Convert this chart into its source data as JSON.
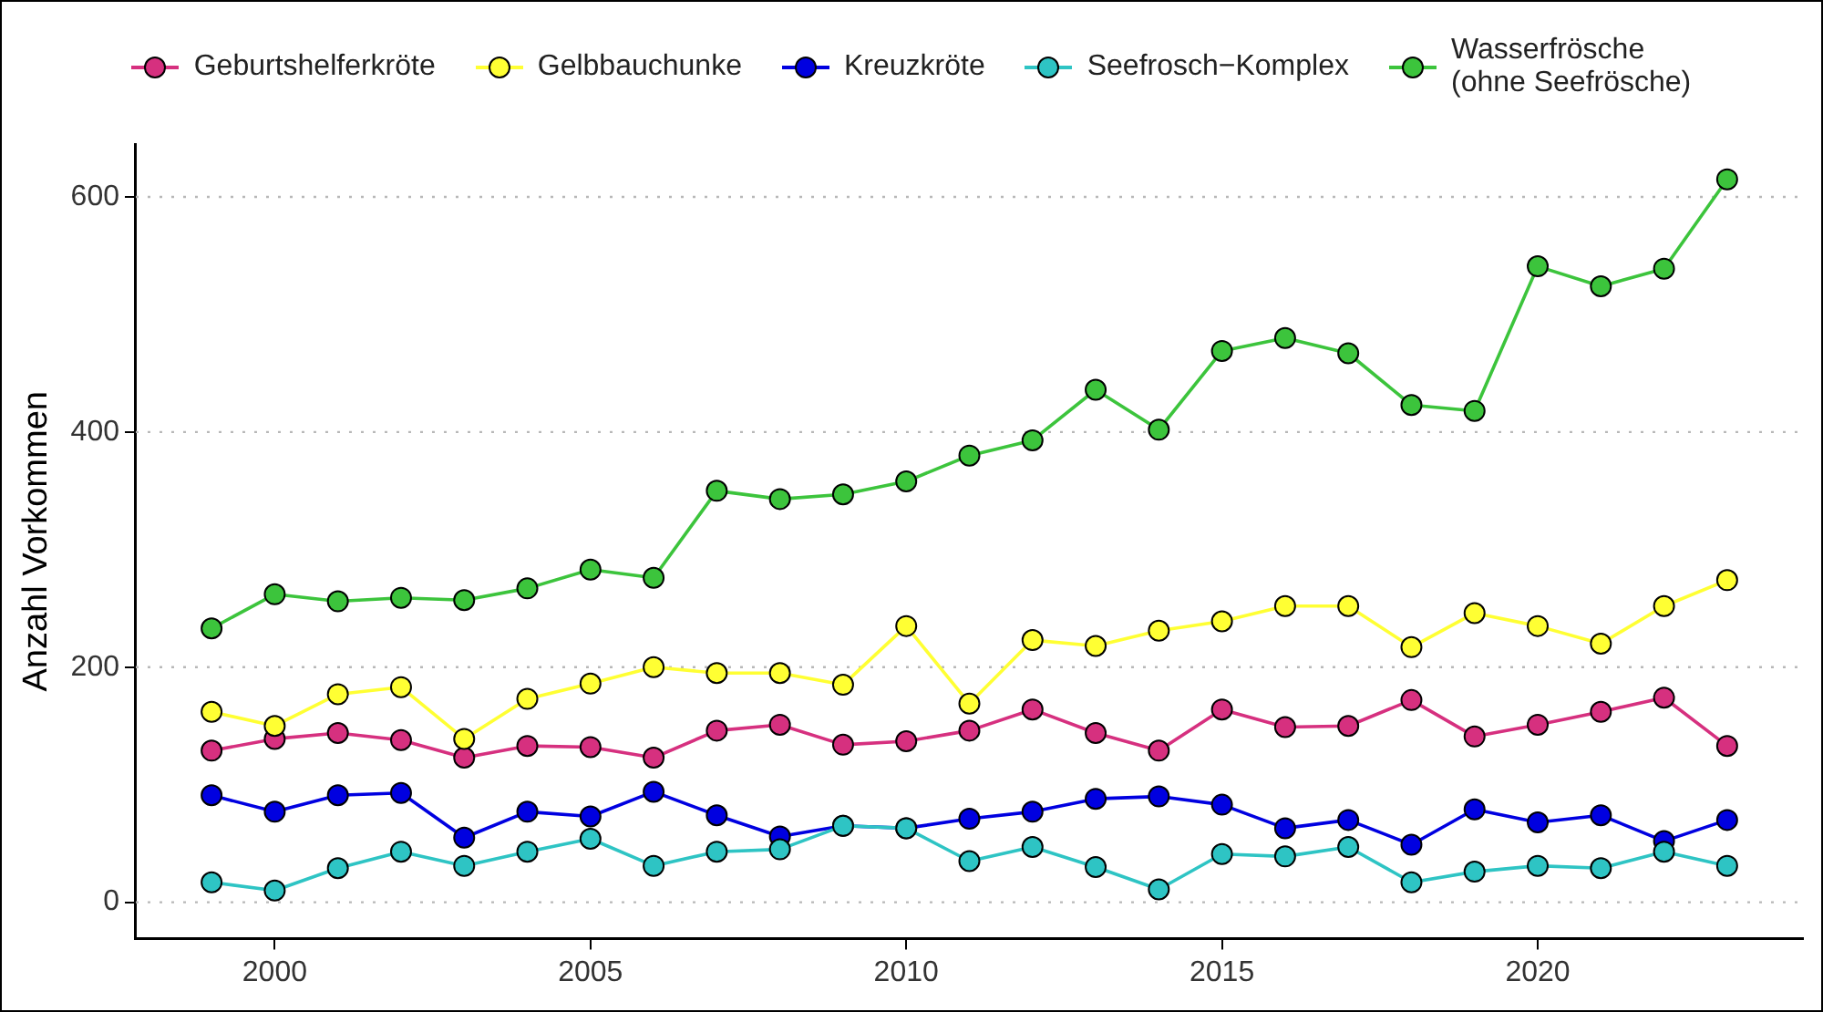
{
  "chart_data": {
    "type": "line",
    "ylabel": "Anzahl Vorkommen",
    "x": [
      1999,
      2000,
      2001,
      2002,
      2003,
      2004,
      2005,
      2006,
      2007,
      2008,
      2009,
      2010,
      2011,
      2012,
      2013,
      2014,
      2015,
      2016,
      2017,
      2018,
      2019,
      2020,
      2021,
      2022,
      2023
    ],
    "series": [
      {
        "name": "Geburtshelferkröte",
        "color": "#d6307f",
        "values": [
          129,
          139,
          144,
          138,
          123,
          133,
          132,
          123,
          146,
          151,
          134,
          137,
          146,
          164,
          144,
          129,
          164,
          149,
          150,
          172,
          141,
          151,
          162,
          174,
          133
        ]
      },
      {
        "name": "Gelbbauchunke",
        "color": "#ffff33",
        "values": [
          162,
          150,
          177,
          183,
          139,
          173,
          186,
          200,
          195,
          195,
          185,
          235,
          169,
          223,
          218,
          231,
          239,
          252,
          252,
          217,
          246,
          235,
          220,
          252,
          274
        ]
      },
      {
        "name": "Kreuzkröte",
        "color": "#0000e0",
        "values": [
          91,
          77,
          91,
          93,
          55,
          77,
          73,
          94,
          74,
          56,
          65,
          63,
          71,
          77,
          88,
          90,
          83,
          63,
          70,
          49,
          79,
          68,
          74,
          52,
          70
        ]
      },
      {
        "name": "Seefrosch−Komplex",
        "color": "#2ec4c4",
        "values": [
          17,
          10,
          29,
          43,
          31,
          43,
          54,
          31,
          43,
          45,
          65,
          63,
          35,
          47,
          30,
          11,
          41,
          39,
          47,
          17,
          26,
          31,
          29,
          43,
          31
        ]
      },
      {
        "name": "Wasserfrösche\n(ohne Seefrösche)",
        "color": "#3cc43c",
        "values": [
          233,
          262,
          256,
          259,
          257,
          267,
          283,
          276,
          350,
          343,
          347,
          358,
          380,
          393,
          436,
          402,
          469,
          480,
          467,
          423,
          418,
          541,
          524,
          539,
          615
        ]
      }
    ],
    "xlim": [
      1997.8,
      2024.2
    ],
    "xticks": [
      2000,
      2005,
      2010,
      2015,
      2020
    ],
    "ylim": [
      -31,
      645
    ],
    "yticks": [
      0,
      200,
      400,
      600
    ],
    "grid": "y",
    "legend": "top",
    "marker": "circle",
    "line_style": "solid"
  }
}
